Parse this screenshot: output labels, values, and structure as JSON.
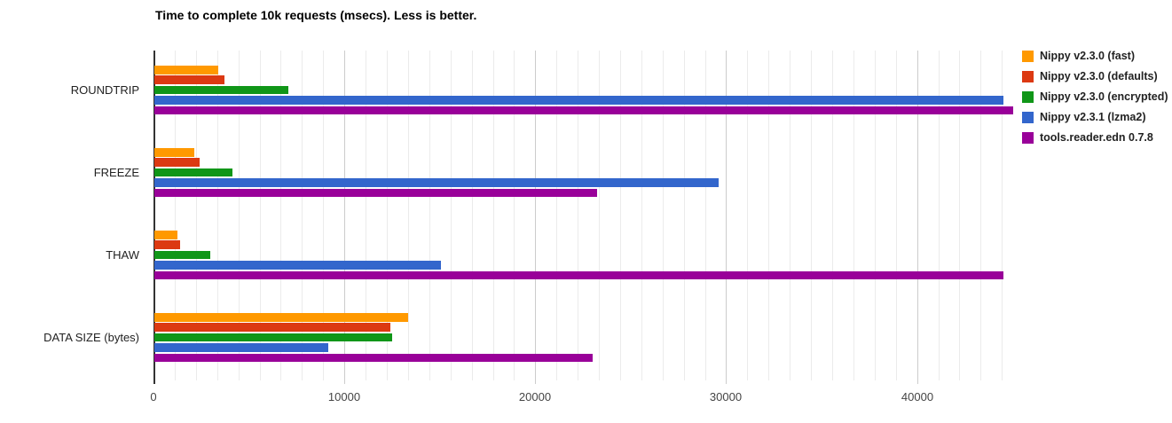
{
  "chart_data": {
    "type": "bar",
    "orientation": "horizontal",
    "title": "Time to complete 10k requests (msecs). Less is better.",
    "categories": [
      "ROUNDTRIP",
      "FREEZE",
      "THAW",
      "DATA SIZE (bytes)"
    ],
    "series": [
      {
        "name": "Nippy v2.3.0 (fast)",
        "color": "#FF9900",
        "values": [
          3350,
          2100,
          1200,
          13300
        ]
      },
      {
        "name": "Nippy v2.3.0 (defaults)",
        "color": "#DC3912",
        "values": [
          3650,
          2350,
          1350,
          12350
        ]
      },
      {
        "name": "Nippy v2.3.0 (encrypted)",
        "color": "#109618",
        "values": [
          7000,
          4100,
          2950,
          12450
        ]
      },
      {
        "name": "Nippy v2.3.1 (lzma2)",
        "color": "#3366CC",
        "values": [
          44500,
          29550,
          15000,
          9100
        ]
      },
      {
        "name": "tools.reader.edn 0.7.8",
        "color": "#990099",
        "values": [
          45000,
          23200,
          44500,
          22950
        ]
      }
    ],
    "x_ticks": [
      0,
      10000,
      20000,
      30000,
      40000
    ],
    "xlim": [
      0,
      45500
    ],
    "grid": true,
    "minor_grid_step": 1111.11,
    "legend_position": "right",
    "colors": {
      "major_gridline": "#cccccc",
      "minor_gridline": "#ebebeb",
      "baseline": "#333333",
      "axis_label": "#444444",
      "category_label": "#222222",
      "title": "#000000",
      "background": "#ffffff"
    }
  }
}
